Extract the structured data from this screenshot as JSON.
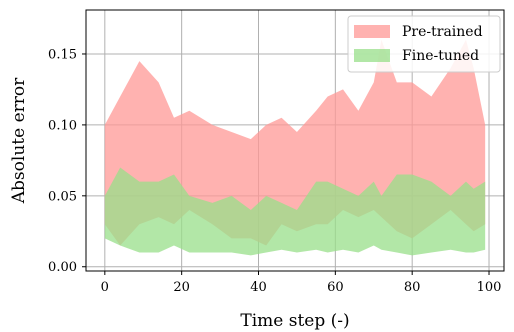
{
  "chart_data": {
    "type": "area",
    "title": "",
    "xlabel": "Time step (-)",
    "ylabel": "Absolute error",
    "xlim": [
      -4.9,
      103.9
    ],
    "ylim": [
      -0.003,
      0.181
    ],
    "xticks": [
      0,
      20,
      40,
      60,
      80,
      100
    ],
    "yticks": [
      0.0,
      0.05,
      0.1,
      0.15
    ],
    "xtick_labels": [
      "0",
      "20",
      "40",
      "60",
      "80",
      "100"
    ],
    "ytick_labels": [
      "0.00",
      "0.05",
      "0.10",
      "0.15"
    ],
    "grid": true,
    "legend_position": "top-right",
    "series": [
      {
        "name": "Pre-trained",
        "color": "#ff9896",
        "opacity": 0.75,
        "x": [
          0,
          4,
          9,
          14,
          18,
          22,
          28,
          33,
          38,
          42,
          46,
          50,
          55,
          58,
          62,
          66,
          70,
          72,
          76,
          80,
          85,
          90,
          94,
          96,
          99
        ],
        "upper": [
          0.1,
          0.12,
          0.145,
          0.13,
          0.105,
          0.11,
          0.1,
          0.095,
          0.09,
          0.1,
          0.105,
          0.095,
          0.11,
          0.12,
          0.125,
          0.11,
          0.13,
          0.16,
          0.13,
          0.13,
          0.12,
          0.14,
          0.16,
          0.14,
          0.1
        ],
        "lower": [
          0.03,
          0.015,
          0.03,
          0.035,
          0.03,
          0.04,
          0.03,
          0.02,
          0.02,
          0.015,
          0.03,
          0.025,
          0.03,
          0.03,
          0.04,
          0.035,
          0.04,
          0.035,
          0.025,
          0.02,
          0.03,
          0.04,
          0.03,
          0.025,
          0.03
        ]
      },
      {
        "name": "Fine-tuned",
        "color": "#98df8a",
        "opacity": 0.75,
        "x": [
          0,
          4,
          9,
          14,
          18,
          22,
          28,
          33,
          38,
          42,
          46,
          50,
          55,
          58,
          62,
          66,
          70,
          72,
          76,
          80,
          85,
          90,
          94,
          96,
          99
        ],
        "upper": [
          0.05,
          0.07,
          0.06,
          0.06,
          0.065,
          0.05,
          0.045,
          0.05,
          0.04,
          0.05,
          0.045,
          0.04,
          0.06,
          0.06,
          0.055,
          0.05,
          0.06,
          0.05,
          0.065,
          0.065,
          0.06,
          0.05,
          0.06,
          0.055,
          0.06
        ],
        "lower": [
          0.02,
          0.015,
          0.01,
          0.01,
          0.015,
          0.01,
          0.01,
          0.01,
          0.008,
          0.01,
          0.012,
          0.01,
          0.012,
          0.01,
          0.012,
          0.01,
          0.015,
          0.012,
          0.01,
          0.008,
          0.01,
          0.012,
          0.01,
          0.01,
          0.012
        ]
      }
    ]
  }
}
